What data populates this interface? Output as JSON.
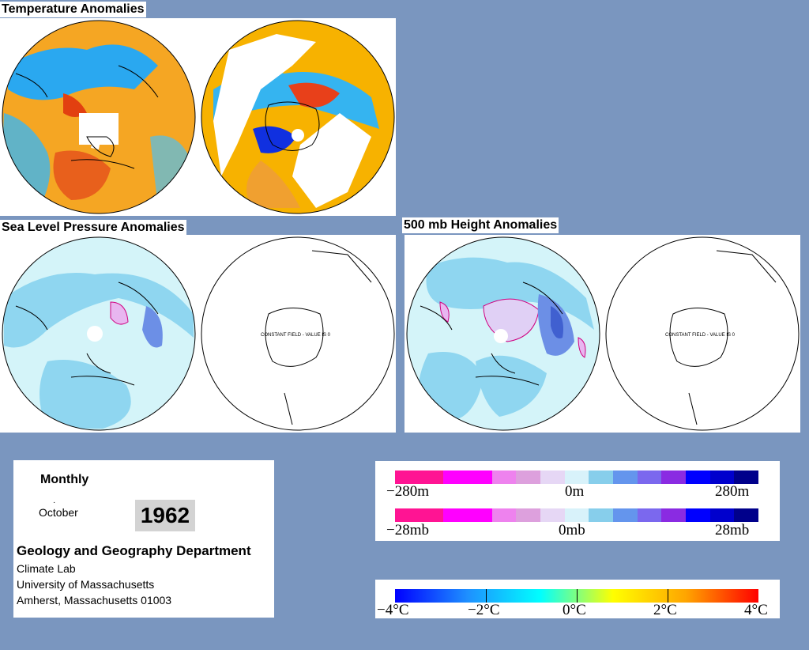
{
  "titles": {
    "temperature": "Temperature Anomalies",
    "slp": "Sea Level Pressure Anomalies",
    "height": "500 mb Height Anomalies"
  },
  "constant_field_label": "CONSTANT FIELD - VALUE IS 0",
  "info": {
    "period": "Monthly",
    "month": "October",
    "year": "1962",
    "department": "Geology and Geography Department",
    "lab": "Climate Lab",
    "university": "University of Massachusetts",
    "address": "Amherst, Massachusetts 01003"
  },
  "legend_height": {
    "labels": [
      "−280m",
      "0m",
      "280m"
    ],
    "colors": [
      "#ff1493",
      "#ff1493",
      "#ff00ff",
      "#ff00ff",
      "#ee82ee",
      "#dda0dd",
      "#e6d7f5",
      "#d8f2fa",
      "#87ceeb",
      "#6495ed",
      "#7b68ee",
      "#8a2be2",
      "#0000ff",
      "#0000cd",
      "#00008b"
    ]
  },
  "legend_pressure": {
    "labels": [
      "−28mb",
      "0mb",
      "28mb"
    ],
    "colors": [
      "#ff1493",
      "#ff1493",
      "#ff00ff",
      "#ff00ff",
      "#ee82ee",
      "#dda0dd",
      "#e6d7f5",
      "#d8f2fa",
      "#87ceeb",
      "#6495ed",
      "#7b68ee",
      "#8a2be2",
      "#0000ff",
      "#0000cd",
      "#00008b"
    ]
  },
  "legend_temperature": {
    "labels": [
      "−4°C",
      "−2°C",
      "0°C",
      "2°C",
      "4°C"
    ],
    "gradient": [
      "#0000ff",
      "#1e90ff",
      "#00ffff",
      "#ffff00",
      "#ffa500",
      "#ff0000"
    ]
  }
}
